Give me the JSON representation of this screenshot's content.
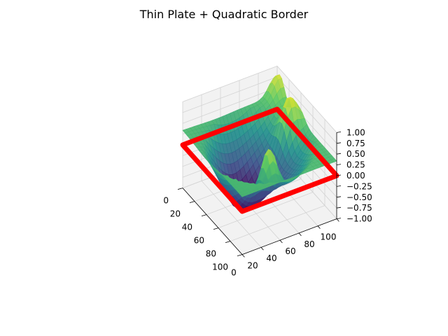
{
  "chart_data": {
    "type": "surface",
    "title": "Thin Plate + Quadratic Border",
    "x_ticks": [
      "0",
      "20",
      "40",
      "60",
      "80",
      "100"
    ],
    "y_ticks": [
      "0",
      "20",
      "40",
      "60",
      "80",
      "100"
    ],
    "z_ticks": [
      "−1.00",
      "−0.75",
      "−0.50",
      "−0.25",
      "0.00",
      "0.25",
      "0.50",
      "0.75",
      "1.00"
    ],
    "xlim": [
      0,
      100
    ],
    "ylim": [
      0,
      100
    ],
    "zlim": [
      -1,
      1
    ],
    "colormap": "viridis",
    "grid": true,
    "surface_samples": [
      {
        "x": 0,
        "y": 0,
        "z": 0.34
      },
      {
        "x": 100,
        "y": 0,
        "z": 0.34
      },
      {
        "x": 0,
        "y": 100,
        "z": 0.34
      },
      {
        "x": 100,
        "y": 100,
        "z": 0.34
      },
      {
        "x": 50,
        "y": 50,
        "z": -0.9
      }
    ],
    "border": {
      "color": "#ff0000",
      "z": 0.0,
      "corners": [
        [
          0,
          0
        ],
        [
          100,
          0
        ],
        [
          100,
          100
        ],
        [
          0,
          100
        ]
      ]
    }
  }
}
